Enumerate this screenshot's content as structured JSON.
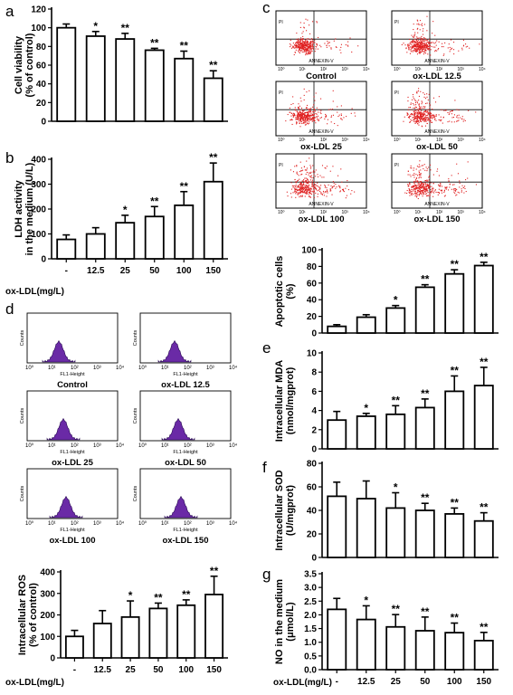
{
  "panel_letters": [
    "a",
    "b",
    "c",
    "d",
    "e",
    "f",
    "g"
  ],
  "x_axis_title": "ox-LDL(mg/L)",
  "dose_categories": [
    "-",
    "12.5",
    "25",
    "50",
    "100",
    "150"
  ],
  "chart_data": [
    {
      "id": "a",
      "type": "bar",
      "ylabel_lines": [
        "Cell viability",
        "(% of control)"
      ],
      "ylim": [
        0,
        120
      ],
      "yticks": [
        "0",
        "20",
        "40",
        "60",
        "80",
        "100",
        "120"
      ],
      "categories": [
        "-",
        "12.5",
        "25",
        "50",
        "100",
        "150"
      ],
      "values": [
        100,
        91,
        88,
        76,
        67,
        46
      ],
      "errors": [
        4,
        5,
        6,
        2,
        8,
        8
      ],
      "significance": [
        "",
        "*",
        "**",
        "**",
        "**",
        "**"
      ]
    },
    {
      "id": "b",
      "type": "bar",
      "ylabel_lines": [
        "LDH activity",
        "in the medium (U/L)"
      ],
      "ylim": [
        0,
        400
      ],
      "yticks": [
        "0",
        "100",
        "200",
        "300",
        "400"
      ],
      "categories": [
        "-",
        "12.5",
        "25",
        "50",
        "100",
        "150"
      ],
      "values": [
        78,
        100,
        145,
        170,
        215,
        310
      ],
      "errors": [
        18,
        25,
        30,
        40,
        55,
        75
      ],
      "significance": [
        "",
        "",
        "*",
        "**",
        "**",
        "**"
      ]
    },
    {
      "id": "c",
      "type": "bar",
      "ylabel_lines": [
        "Apoptotic cells",
        "(%)"
      ],
      "ylim": [
        0,
        100
      ],
      "yticks": [
        "0",
        "20",
        "40",
        "60",
        "80",
        "100"
      ],
      "categories": [
        "-",
        "12.5",
        "25",
        "50",
        "100",
        "150"
      ],
      "values": [
        8,
        19,
        30,
        55,
        71,
        81
      ],
      "errors": [
        2,
        3,
        3,
        3,
        5,
        4
      ],
      "significance": [
        "",
        "",
        "*",
        "**",
        "**",
        "**"
      ]
    },
    {
      "id": "d",
      "type": "bar",
      "ylabel_lines": [
        "Intracellular ROS",
        "(% of control)"
      ],
      "ylim": [
        0,
        400
      ],
      "yticks": [
        "0",
        "100",
        "200",
        "300",
        "400"
      ],
      "categories": [
        "-",
        "12.5",
        "25",
        "50",
        "100",
        "150"
      ],
      "values": [
        100,
        160,
        190,
        230,
        245,
        295
      ],
      "errors": [
        28,
        60,
        75,
        25,
        25,
        85
      ],
      "significance": [
        "",
        "",
        "*",
        "**",
        "**",
        "**"
      ]
    },
    {
      "id": "e",
      "type": "bar",
      "ylabel_lines": [
        "Intracellular MDA",
        "(nmol/mgprot)"
      ],
      "ylim": [
        0,
        10
      ],
      "yticks": [
        "0",
        "2",
        "4",
        "6",
        "8",
        "10"
      ],
      "categories": [
        "-",
        "12.5",
        "25",
        "50",
        "100",
        "150"
      ],
      "values": [
        3.0,
        3.4,
        3.6,
        4.3,
        6.0,
        6.6
      ],
      "errors": [
        0.9,
        0.3,
        0.9,
        0.9,
        1.6,
        1.9
      ],
      "significance": [
        "",
        "*",
        "**",
        "**",
        "**",
        "**"
      ]
    },
    {
      "id": "f",
      "type": "bar",
      "ylabel_lines": [
        "Intracellular SOD",
        "(U/mgprot)"
      ],
      "ylim": [
        0,
        80
      ],
      "yticks": [
        "0",
        "20",
        "40",
        "60",
        "80"
      ],
      "categories": [
        "-",
        "12.5",
        "25",
        "50",
        "100",
        "150"
      ],
      "values": [
        52,
        50,
        42,
        40,
        37,
        31
      ],
      "errors": [
        12,
        15,
        13,
        6,
        5,
        7
      ],
      "significance": [
        "",
        "",
        "*",
        "**",
        "**",
        "**"
      ]
    },
    {
      "id": "g",
      "type": "bar",
      "ylabel_lines": [
        "NO in the medium",
        "(μmol/L)"
      ],
      "ylim": [
        0,
        3.5
      ],
      "yticks": [
        "0.0",
        "0.5",
        "1.0",
        "1.5",
        "2.0",
        "2.5",
        "3.0",
        "3.5"
      ],
      "categories": [
        "-",
        "12.5",
        "25",
        "50",
        "100",
        "150"
      ],
      "values": [
        2.2,
        1.83,
        1.56,
        1.42,
        1.35,
        1.06
      ],
      "errors": [
        0.4,
        0.5,
        0.45,
        0.5,
        0.35,
        0.3
      ],
      "significance": [
        "",
        "*",
        "**",
        "**",
        "**",
        "**"
      ]
    }
  ],
  "flow_cytometry": {
    "x_axis": "ANNEXIN-V",
    "y_axis": "PI",
    "tick_labels": [
      "10⁰",
      "10¹",
      "10²",
      "10³",
      "10⁴"
    ],
    "plots": [
      {
        "label": "Control"
      },
      {
        "label": "ox-LDL 12.5"
      },
      {
        "label": "ox-LDL 25"
      },
      {
        "label": "ox-LDL 50"
      },
      {
        "label": "ox-LDL 100"
      },
      {
        "label": "ox-LDL 150"
      }
    ],
    "dot_color": "#e02020"
  },
  "ros_histograms": {
    "x_axis": "FL1-Height",
    "y_axis": "Counts",
    "tick_labels": [
      "10⁰",
      "10¹",
      "10²",
      "10³",
      "10⁴"
    ],
    "plots": [
      {
        "label": "Control"
      },
      {
        "label": "ox-LDL 12.5"
      },
      {
        "label": "ox-LDL 25"
      },
      {
        "label": "ox-LDL 50"
      },
      {
        "label": "ox-LDL 100"
      },
      {
        "label": "ox-LDL 150"
      }
    ],
    "fill_color": "#6a2aa6"
  }
}
